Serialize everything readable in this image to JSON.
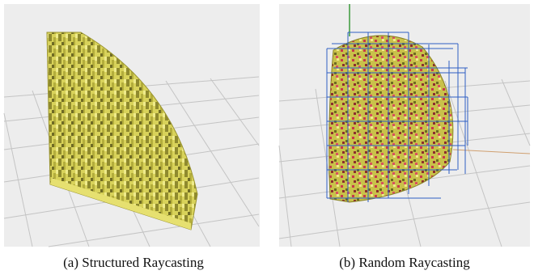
{
  "figures": [
    {
      "caption": "(a) Structured Raycasting"
    },
    {
      "caption": "(b) Random Raycasting"
    }
  ]
}
